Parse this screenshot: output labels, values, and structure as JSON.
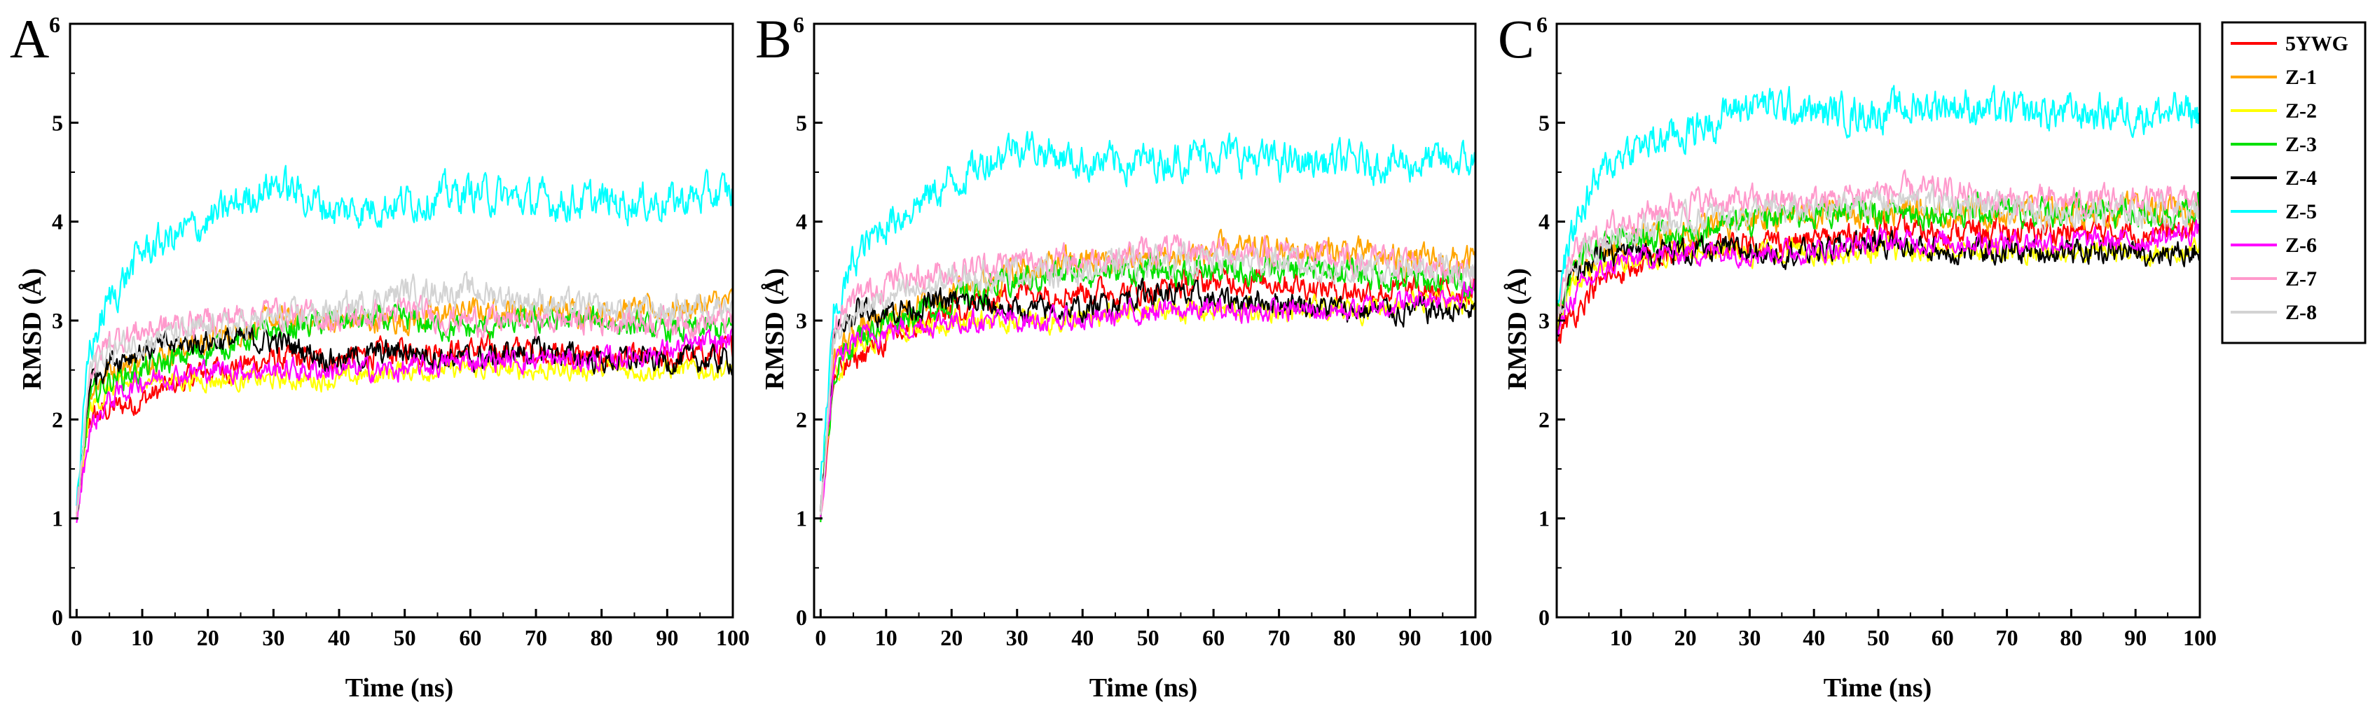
{
  "panels": [
    {
      "letter": "A",
      "title_suffix": "6",
      "xlabel": "Time (ns)",
      "ylabel": "RMSD (Å)",
      "xlim": [
        -1,
        100
      ],
      "ylim": [
        0,
        6
      ],
      "x_ticks": [
        "0",
        "10",
        "20",
        "30",
        "40",
        "50",
        "60",
        "70",
        "80",
        "90",
        "100"
      ],
      "y_ticks": [
        "0",
        "1",
        "2",
        "3",
        "4",
        "5"
      ]
    },
    {
      "letter": "B",
      "title_suffix": "6",
      "xlabel": "Time (ns)",
      "ylabel": "RMSD (Å)",
      "xlim": [
        -1,
        100
      ],
      "ylim": [
        0,
        6
      ],
      "x_ticks": [
        "0",
        "10",
        "20",
        "30",
        "40",
        "50",
        "60",
        "70",
        "80",
        "90",
        "100"
      ],
      "y_ticks": [
        "0",
        "1",
        "2",
        "3",
        "4",
        "5"
      ]
    },
    {
      "letter": "C",
      "title_suffix": "6",
      "xlabel": "Time (ns)",
      "ylabel": "RMSD (Å)",
      "xlim": [
        0,
        100
      ],
      "ylim": [
        0,
        6
      ],
      "x_ticks": [
        "10",
        "20",
        "30",
        "40",
        "50",
        "60",
        "70",
        "80",
        "90",
        "100"
      ],
      "y_ticks": [
        "0",
        "1",
        "2",
        "3",
        "4",
        "5"
      ]
    }
  ],
  "legend": [
    {
      "label": "5YWG",
      "color": "#ff0000"
    },
    {
      "label": "Z-1",
      "color": "#ffa500"
    },
    {
      "label": "Z-2",
      "color": "#ffff00"
    },
    {
      "label": "Z-3",
      "color": "#00e000"
    },
    {
      "label": "Z-4",
      "color": "#000000"
    },
    {
      "label": "Z-5",
      "color": "#00ffff"
    },
    {
      "label": "Z-6",
      "color": "#ff00ff"
    },
    {
      "label": "Z-7",
      "color": "#ff99cc"
    },
    {
      "label": "Z-8",
      "color": "#d3d3d3"
    }
  ],
  "chart_data": [
    {
      "type": "line",
      "panel": "A",
      "xlabel": "Time (ns)",
      "ylabel": "RMSD (Å)",
      "xlim": [
        -1,
        100
      ],
      "ylim": [
        0,
        6
      ],
      "x": [
        0,
        2,
        5,
        10,
        20,
        30,
        40,
        50,
        60,
        70,
        80,
        90,
        100
      ],
      "series": [
        {
          "name": "5YWG",
          "color": "#ff0000",
          "noise": 0.09,
          "values": [
            1.0,
            2.0,
            2.1,
            2.2,
            2.5,
            2.6,
            2.6,
            2.7,
            2.7,
            2.7,
            2.6,
            2.6,
            2.7
          ]
        },
        {
          "name": "Z-1",
          "color": "#ffa500",
          "noise": 0.09,
          "values": [
            1.0,
            2.3,
            2.5,
            2.6,
            2.8,
            3.0,
            3.0,
            3.0,
            3.1,
            3.1,
            3.1,
            3.1,
            3.2
          ]
        },
        {
          "name": "Z-2",
          "color": "#ffff00",
          "noise": 0.07,
          "values": [
            1.0,
            2.1,
            2.3,
            2.4,
            2.4,
            2.4,
            2.4,
            2.5,
            2.5,
            2.5,
            2.5,
            2.5,
            2.5
          ]
        },
        {
          "name": "Z-3",
          "color": "#00e000",
          "noise": 0.09,
          "values": [
            1.0,
            2.2,
            2.4,
            2.5,
            2.7,
            2.9,
            3.0,
            3.0,
            2.9,
            3.0,
            3.0,
            2.9,
            2.9
          ]
        },
        {
          "name": "Z-4",
          "color": "#000000",
          "noise": 0.09,
          "values": [
            1.0,
            2.4,
            2.6,
            2.7,
            2.8,
            2.8,
            2.6,
            2.7,
            2.6,
            2.7,
            2.6,
            2.6,
            2.6
          ]
        },
        {
          "name": "Z-5",
          "color": "#00ffff",
          "noise": 0.13,
          "values": [
            1.2,
            2.7,
            3.2,
            3.7,
            4.0,
            4.4,
            4.1,
            4.2,
            4.3,
            4.2,
            4.2,
            4.2,
            4.3
          ]
        },
        {
          "name": "Z-6",
          "color": "#ff00ff",
          "noise": 0.08,
          "values": [
            1.0,
            1.9,
            2.2,
            2.4,
            2.5,
            2.5,
            2.5,
            2.5,
            2.6,
            2.6,
            2.6,
            2.7,
            2.8
          ]
        },
        {
          "name": "Z-7",
          "color": "#ff99cc",
          "noise": 0.1,
          "values": [
            1.0,
            2.5,
            2.8,
            2.9,
            3.0,
            3.1,
            3.0,
            3.1,
            3.0,
            3.0,
            3.0,
            3.0,
            3.0
          ]
        },
        {
          "name": "Z-8",
          "color": "#d3d3d3",
          "noise": 0.1,
          "values": [
            1.0,
            2.5,
            2.7,
            2.8,
            2.9,
            3.0,
            3.1,
            3.3,
            3.3,
            3.2,
            3.1,
            3.1,
            3.2
          ]
        }
      ]
    },
    {
      "type": "line",
      "panel": "B",
      "xlabel": "Time (ns)",
      "ylabel": "RMSD (Å)",
      "xlim": [
        -1,
        100
      ],
      "ylim": [
        0,
        6
      ],
      "x": [
        0,
        2,
        5,
        10,
        20,
        30,
        40,
        50,
        60,
        70,
        80,
        90,
        100
      ],
      "series": [
        {
          "name": "5YWG",
          "color": "#ff0000",
          "noise": 0.09,
          "values": [
            1.0,
            2.4,
            2.6,
            2.8,
            3.1,
            3.3,
            3.3,
            3.3,
            3.4,
            3.4,
            3.3,
            3.3,
            3.3
          ]
        },
        {
          "name": "Z-1",
          "color": "#ffa500",
          "noise": 0.1,
          "values": [
            1.0,
            2.6,
            2.9,
            3.0,
            3.3,
            3.5,
            3.6,
            3.6,
            3.7,
            3.7,
            3.7,
            3.6,
            3.6
          ]
        },
        {
          "name": "Z-2",
          "color": "#ffff00",
          "noise": 0.08,
          "values": [
            1.0,
            2.4,
            2.7,
            2.9,
            3.0,
            3.0,
            3.0,
            3.1,
            3.1,
            3.1,
            3.1,
            3.2,
            3.2
          ]
        },
        {
          "name": "Z-3",
          "color": "#00e000",
          "noise": 0.1,
          "values": [
            1.0,
            2.5,
            2.8,
            3.0,
            3.2,
            3.4,
            3.5,
            3.5,
            3.5,
            3.5,
            3.5,
            3.4,
            3.4
          ]
        },
        {
          "name": "Z-4",
          "color": "#000000",
          "noise": 0.09,
          "values": [
            1.0,
            2.8,
            3.1,
            3.1,
            3.2,
            3.1,
            3.1,
            3.3,
            3.2,
            3.2,
            3.1,
            3.1,
            3.1
          ]
        },
        {
          "name": "Z-5",
          "color": "#00ffff",
          "noise": 0.13,
          "values": [
            1.3,
            3.0,
            3.6,
            4.0,
            4.4,
            4.8,
            4.6,
            4.6,
            4.7,
            4.6,
            4.6,
            4.6,
            4.6
          ]
        },
        {
          "name": "Z-6",
          "color": "#ff00ff",
          "noise": 0.08,
          "values": [
            1.0,
            2.5,
            2.8,
            2.9,
            3.0,
            3.0,
            3.0,
            3.1,
            3.1,
            3.1,
            3.1,
            3.2,
            3.3
          ]
        },
        {
          "name": "Z-7",
          "color": "#ff99cc",
          "noise": 0.1,
          "values": [
            1.0,
            2.9,
            3.2,
            3.4,
            3.5,
            3.6,
            3.6,
            3.7,
            3.7,
            3.7,
            3.6,
            3.6,
            3.5
          ]
        },
        {
          "name": "Z-8",
          "color": "#d3d3d3",
          "noise": 0.1,
          "values": [
            1.0,
            2.8,
            3.1,
            3.2,
            3.4,
            3.5,
            3.5,
            3.6,
            3.6,
            3.6,
            3.5,
            3.5,
            3.5
          ]
        }
      ]
    },
    {
      "type": "line",
      "panel": "C",
      "xlabel": "Time (ns)",
      "ylabel": "RMSD (Å)",
      "xlim": [
        0,
        100
      ],
      "ylim": [
        0,
        6
      ],
      "x": [
        0,
        2,
        5,
        10,
        20,
        30,
        40,
        50,
        60,
        70,
        80,
        90,
        100
      ],
      "series": [
        {
          "name": "5YWG",
          "color": "#ff0000",
          "noise": 0.09,
          "values": [
            2.8,
            3.0,
            3.3,
            3.5,
            3.7,
            3.8,
            3.8,
            3.9,
            3.9,
            3.9,
            3.9,
            3.9,
            3.9
          ]
        },
        {
          "name": "Z-1",
          "color": "#ffa500",
          "noise": 0.1,
          "values": [
            3.0,
            3.4,
            3.6,
            3.8,
            3.9,
            4.0,
            4.1,
            4.1,
            4.1,
            4.1,
            4.1,
            4.1,
            4.1
          ]
        },
        {
          "name": "Z-2",
          "color": "#ffff00",
          "noise": 0.08,
          "values": [
            2.9,
            3.3,
            3.5,
            3.6,
            3.7,
            3.7,
            3.7,
            3.7,
            3.7,
            3.7,
            3.7,
            3.7,
            3.7
          ]
        },
        {
          "name": "Z-3",
          "color": "#00e000",
          "noise": 0.1,
          "values": [
            3.0,
            3.5,
            3.7,
            3.8,
            3.9,
            4.0,
            4.1,
            4.1,
            4.1,
            4.1,
            4.1,
            4.1,
            4.1
          ]
        },
        {
          "name": "Z-4",
          "color": "#000000",
          "noise": 0.09,
          "values": [
            2.9,
            3.4,
            3.6,
            3.7,
            3.7,
            3.7,
            3.7,
            3.8,
            3.7,
            3.7,
            3.7,
            3.7,
            3.7
          ]
        },
        {
          "name": "Z-5",
          "color": "#00ffff",
          "noise": 0.13,
          "values": [
            3.2,
            3.8,
            4.3,
            4.7,
            4.9,
            5.2,
            5.1,
            5.1,
            5.2,
            5.1,
            5.1,
            5.1,
            5.1
          ]
        },
        {
          "name": "Z-6",
          "color": "#ff00ff",
          "noise": 0.08,
          "values": [
            2.8,
            3.2,
            3.4,
            3.6,
            3.7,
            3.7,
            3.7,
            3.8,
            3.8,
            3.8,
            3.8,
            3.8,
            3.9
          ]
        },
        {
          "name": "Z-7",
          "color": "#ff99cc",
          "noise": 0.1,
          "values": [
            3.0,
            3.6,
            3.8,
            4.0,
            4.2,
            4.2,
            4.2,
            4.3,
            4.3,
            4.2,
            4.2,
            4.2,
            4.2
          ]
        },
        {
          "name": "Z-8",
          "color": "#d3d3d3",
          "noise": 0.1,
          "values": [
            3.0,
            3.5,
            3.7,
            3.9,
            4.0,
            4.1,
            4.1,
            4.2,
            4.2,
            4.1,
            4.1,
            4.1,
            4.1
          ]
        }
      ]
    }
  ]
}
